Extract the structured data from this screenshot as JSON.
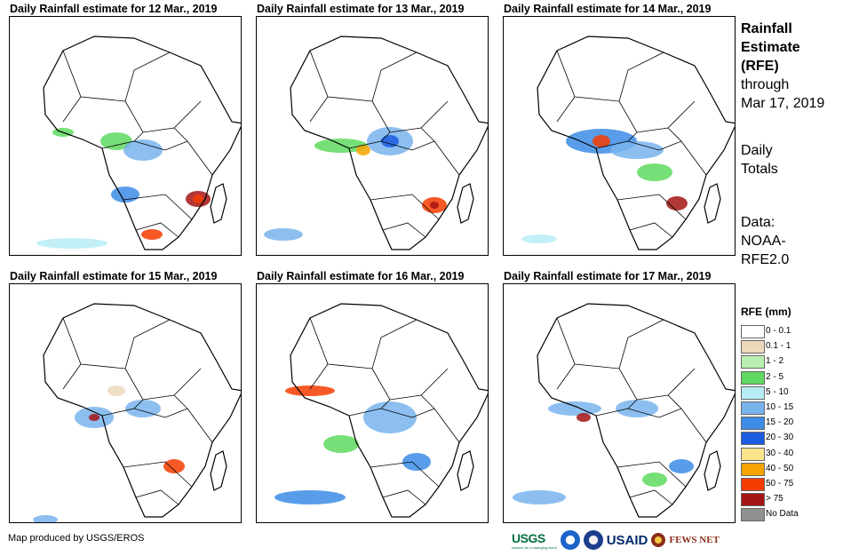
{
  "panels": [
    {
      "title": "Daily Rainfall estimate for 12 Mar., 2019"
    },
    {
      "title": "Daily Rainfall estimate for 13 Mar., 2019"
    },
    {
      "title": "Daily Rainfall estimate for 14 Mar., 2019"
    },
    {
      "title": "Daily Rainfall estimate for 15 Mar., 2019"
    },
    {
      "title": "Daily Rainfall estimate for 16 Mar., 2019"
    },
    {
      "title": "Daily Rainfall estimate for 17 Mar., 2019"
    }
  ],
  "side": {
    "title_lines": [
      "Rainfall",
      "Estimate",
      "(RFE)"
    ],
    "through_lines": [
      "through",
      "Mar 17, 2019"
    ],
    "daily_lines": [
      "Daily",
      "Totals"
    ],
    "data_lines": [
      "Data:",
      "NOAA-",
      "RFE2.0"
    ]
  },
  "legend": {
    "title": "RFE (mm)",
    "items": [
      {
        "label": "0 - 0.1",
        "color": "#ffffff"
      },
      {
        "label": "0.1 - 1",
        "color": "#ecd9bc"
      },
      {
        "label": "1 - 2",
        "color": "#b8f0b0"
      },
      {
        "label": "2 - 5",
        "color": "#5fd95f"
      },
      {
        "label": "5 - 10",
        "color": "#b8ecf4"
      },
      {
        "label": "10 - 15",
        "color": "#78b4ec"
      },
      {
        "label": "15 - 20",
        "color": "#3c8ce6"
      },
      {
        "label": "20 - 30",
        "color": "#1c5ce0"
      },
      {
        "label": "30 - 40",
        "color": "#fce48c"
      },
      {
        "label": "40 - 50",
        "color": "#f4a400"
      },
      {
        "label": "50 - 75",
        "color": "#f43c00"
      },
      {
        "label": "> 75",
        "color": "#a41414"
      },
      {
        "label": "No Data",
        "color": "#909090"
      }
    ]
  },
  "credit": "Map produced by USGS/EROS",
  "logos": {
    "usgs": "USGS",
    "usgs_tagline": "science for a changing world",
    "usaid": "USAID",
    "fews": "FEWS NET"
  }
}
